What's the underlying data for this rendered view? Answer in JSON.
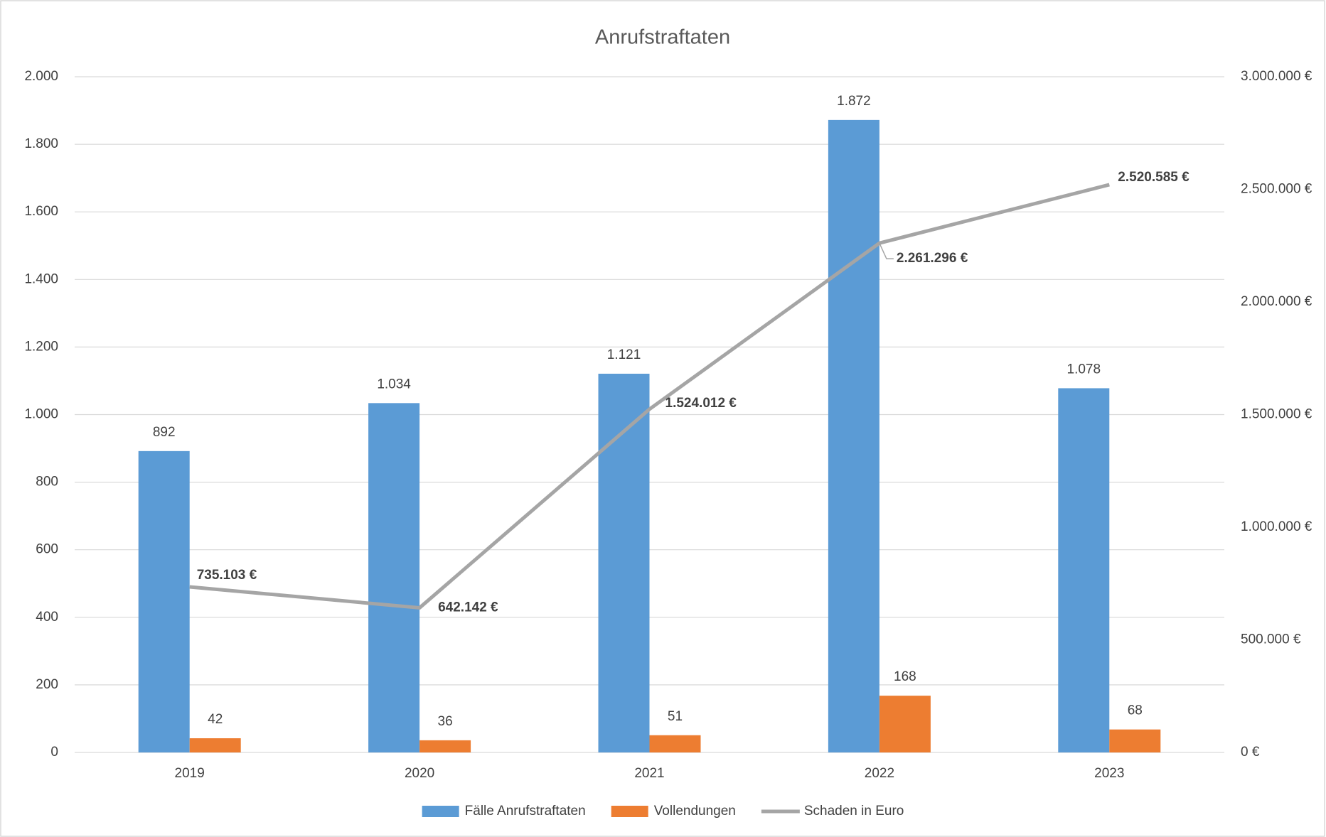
{
  "chart_data": {
    "type": "bar",
    "title": "Anrufstraftaten",
    "categories": [
      "2019",
      "2020",
      "2021",
      "2022",
      "2023"
    ],
    "series": [
      {
        "name": "Fälle Anrufstraftaten",
        "type": "bar",
        "color": "#5b9bd5",
        "values": [
          892,
          1034,
          1121,
          1872,
          1078
        ],
        "value_labels": [
          "892",
          "1.034",
          "1.121",
          "1.872",
          "1.078"
        ]
      },
      {
        "name": "Vollendungen",
        "type": "bar",
        "color": "#ed7d31",
        "values": [
          42,
          36,
          51,
          168,
          68
        ]
      },
      {
        "name": "Schaden in Euro",
        "type": "line",
        "axis": "y2",
        "color": "#a5a5a5",
        "values": [
          735103,
          642142,
          1524012,
          2261296,
          2520585
        ],
        "value_labels": [
          "735.103 €",
          "642.142 €",
          "1.524.012 €",
          "2.261.296 €",
          "2.520.585 €"
        ]
      }
    ],
    "ylim": [
      0,
      2000
    ],
    "yticks": [
      0,
      200,
      400,
      600,
      800,
      {
        "value": 1000,
        "label": "1.000"
      },
      {
        "value": 1200,
        "label": "1.200"
      },
      {
        "value": 1400,
        "label": "1.400"
      },
      {
        "value": 1600,
        "label": "1.600"
      },
      {
        "value": 1800,
        "label": "1.800"
      },
      {
        "value": 2000,
        "label": "2.000"
      }
    ],
    "y2lim": [
      0,
      3000000
    ],
    "y2ticks": [
      {
        "value": 0,
        "label": "0 €"
      },
      {
        "value": 500000,
        "label": "500.000 €"
      },
      {
        "value": 1000000,
        "label": "1.000.000 €"
      },
      {
        "value": 1500000,
        "label": "1.500.000 €"
      },
      {
        "value": 2000000,
        "label": "2.000.000 €"
      },
      {
        "value": 2500000,
        "label": "2.500.000 €"
      },
      {
        "value": 3000000,
        "label": "3.000.000 €"
      }
    ],
    "grid": true,
    "legend": "bottom"
  }
}
